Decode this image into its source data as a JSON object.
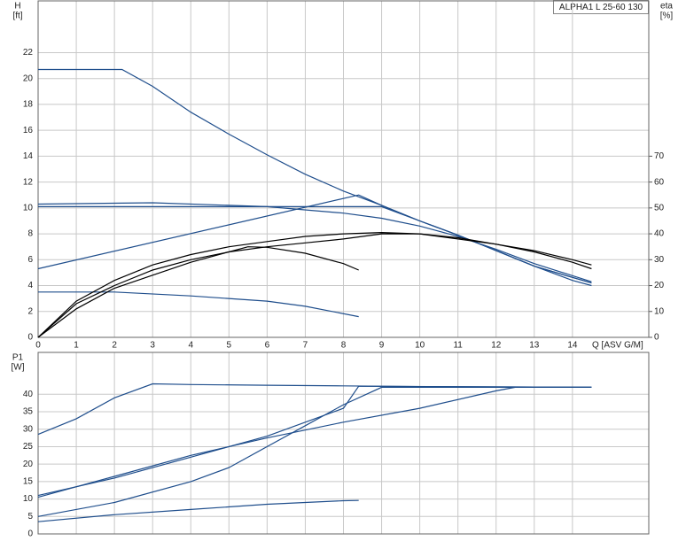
{
  "chart_data": [
    {
      "type": "line",
      "title": "ALPHA1 L 25-60 130",
      "y_label": [
        "H",
        "[ft]"
      ],
      "y2_label": [
        "eta",
        "[%]"
      ],
      "x_label": "Q [ASV G/M]",
      "xlim": [
        0,
        16
      ],
      "xticks": [
        0,
        1,
        2,
        3,
        4,
        5,
        6,
        7,
        8,
        9,
        10,
        11,
        12,
        13,
        14
      ],
      "ylim": [
        0,
        26
      ],
      "yticks": [
        0,
        2,
        4,
        6,
        8,
        10,
        12,
        14,
        16,
        18,
        20,
        22
      ],
      "y2lim": [
        0,
        130
      ],
      "y2ticks": [
        0,
        10,
        20,
        30,
        40,
        50,
        60,
        70
      ],
      "grid": true,
      "series": [
        {
          "color": "#1f4e8c",
          "x": [
            0,
            2.2,
            3,
            4,
            5,
            6,
            7,
            8,
            9,
            10,
            11,
            12,
            13,
            14,
            14.5
          ],
          "values": [
            20.7,
            20.7,
            19.4,
            17.4,
            15.7,
            14.1,
            12.6,
            11.3,
            10.2,
            9.0,
            7.9,
            6.7,
            5.5,
            4.4,
            4.0
          ]
        },
        {
          "color": "#1f4e8c",
          "x": [
            0,
            3,
            6,
            8,
            9,
            10,
            11,
            12,
            13,
            14.5
          ],
          "values": [
            10.3,
            10.4,
            10.1,
            9.6,
            9.2,
            8.6,
            7.8,
            6.8,
            5.7,
            4.3
          ]
        },
        {
          "color": "#1f4e8c",
          "x": [
            0,
            9,
            10,
            11,
            12,
            13,
            14.5
          ],
          "values": [
            10.1,
            10.1,
            9.0,
            7.9,
            6.7,
            5.5,
            4.2
          ]
        },
        {
          "color": "#1f4e8c",
          "x": [
            0,
            8.4,
            9,
            10,
            11,
            12,
            13,
            14.5
          ],
          "values": [
            5.3,
            11.0,
            10.2,
            9.0,
            7.9,
            6.7,
            5.5,
            4.2
          ]
        },
        {
          "color": "#1f4e8c",
          "x": [
            0,
            2,
            4,
            6,
            7,
            8.4
          ],
          "values": [
            3.5,
            3.5,
            3.2,
            2.8,
            2.4,
            1.6
          ]
        },
        {
          "color": "#000000",
          "axis": "y2",
          "x": [
            0,
            1,
            2,
            3,
            4,
            5,
            6,
            7,
            8,
            9,
            10,
            11,
            12,
            13,
            14,
            14.5
          ],
          "values": [
            0,
            14,
            22,
            28,
            32,
            35,
            37,
            39,
            40,
            40.5,
            40,
            38.5,
            36,
            33,
            29,
            26.5
          ]
        },
        {
          "color": "#000000",
          "axis": "y2",
          "x": [
            0,
            1,
            2,
            3,
            4,
            5,
            6,
            7,
            8,
            9,
            10,
            11,
            12,
            13,
            14,
            14.5
          ],
          "values": [
            0,
            13,
            20,
            26,
            30,
            33,
            35,
            36.5,
            38,
            40,
            40,
            38,
            36,
            33.5,
            30,
            28
          ]
        },
        {
          "color": "#000000",
          "axis": "y2",
          "x": [
            0,
            1,
            2,
            3,
            4,
            5,
            5.5,
            6,
            7,
            8,
            8.4
          ],
          "values": [
            0,
            11,
            19,
            24,
            29,
            33,
            35,
            34.8,
            32.5,
            28.5,
            26
          ]
        }
      ]
    },
    {
      "type": "line",
      "y_label": [
        "P1",
        "[W]"
      ],
      "xlim": [
        0,
        16
      ],
      "ylim": [
        0,
        52
      ],
      "yticks": [
        0,
        5,
        10,
        15,
        20,
        25,
        30,
        35,
        40
      ],
      "grid": true,
      "series": [
        {
          "color": "#1f4e8c",
          "x": [
            0,
            1,
            2,
            3,
            4,
            6,
            8,
            10,
            14.5
          ],
          "values": [
            28.5,
            33,
            39,
            43,
            42.8,
            42.6,
            42.4,
            42.2,
            42
          ]
        },
        {
          "color": "#1f4e8c",
          "x": [
            0,
            2,
            4,
            6,
            8,
            8.4,
            14.5
          ],
          "values": [
            11,
            16,
            22,
            28,
            36,
            42.3,
            42
          ]
        },
        {
          "color": "#1f4e8c",
          "x": [
            0,
            2,
            4,
            6,
            8,
            10,
            12,
            12.5,
            14.5
          ],
          "values": [
            10.5,
            16.5,
            22.5,
            27.5,
            32,
            36,
            41,
            42,
            42
          ]
        },
        {
          "color": "#1f4e8c",
          "x": [
            0,
            2,
            4,
            5,
            6,
            7,
            8,
            9,
            14.5
          ],
          "values": [
            5,
            9,
            15,
            19,
            25,
            31,
            37,
            42,
            42
          ]
        },
        {
          "color": "#1f4e8c",
          "x": [
            0,
            2,
            4,
            6,
            8,
            8.4
          ],
          "values": [
            3.5,
            5.5,
            7,
            8.5,
            9.5,
            9.6
          ]
        }
      ]
    }
  ]
}
